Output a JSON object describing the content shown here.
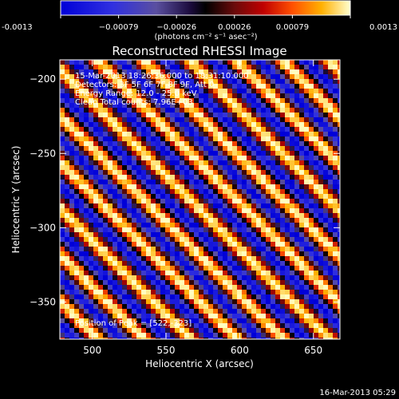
{
  "colors": {
    "background": "#000000",
    "foreground": "#ffffff",
    "colormap": [
      "#0000d8",
      "#3030e0",
      "#5a4fa0",
      "#1a0a3a",
      "#000000",
      "#4a0a0a",
      "#b00000",
      "#ff5000",
      "#ffb000",
      "#ffffc0"
    ]
  },
  "colorbar": {
    "ticks": [
      "-0.0013",
      "−0.00079",
      "−0.00026",
      "0.00026",
      "0.00079",
      "0.0013"
    ],
    "unit": "(photons cm⁻² s⁻¹ asec⁻²)",
    "range": [
      -0.0013,
      0.0013
    ]
  },
  "chart_data": {
    "type": "heatmap",
    "title": "Reconstructed RHESSI Image",
    "xlabel": "Heliocentric X (arcsec)",
    "ylabel": "Heliocentric Y (arcsec)",
    "xlim": [
      478,
      668
    ],
    "ylim": [
      -375,
      -187
    ],
    "xticks": [
      500,
      550,
      600,
      650
    ],
    "yticks": [
      -200,
      -250,
      -300,
      -350
    ],
    "xtick_labels": [
      "500",
      "550",
      "600",
      "650"
    ],
    "ytick_labels": [
      "−200",
      "−250",
      "−300",
      "−350"
    ],
    "annotations": [
      "15-Mar-2013 18:26:36.000 to 18:31:10.000",
      "Detectors: 3F 5F 6F 7F 8F 9F, Att 0",
      "Energy Range: 12.0 - 25.0 keV",
      "Clean     Total counts: 7.96E+03",
      "Position of Peak = [522,-323]"
    ],
    "peak_position": [
      522,
      -323
    ],
    "value_range": [
      -0.0013,
      0.0013
    ],
    "pattern": "diagonal fringes, positive stripes alternating with negative stripes"
  },
  "footer": {
    "timestamp": "16-Mar-2013 05:29"
  }
}
